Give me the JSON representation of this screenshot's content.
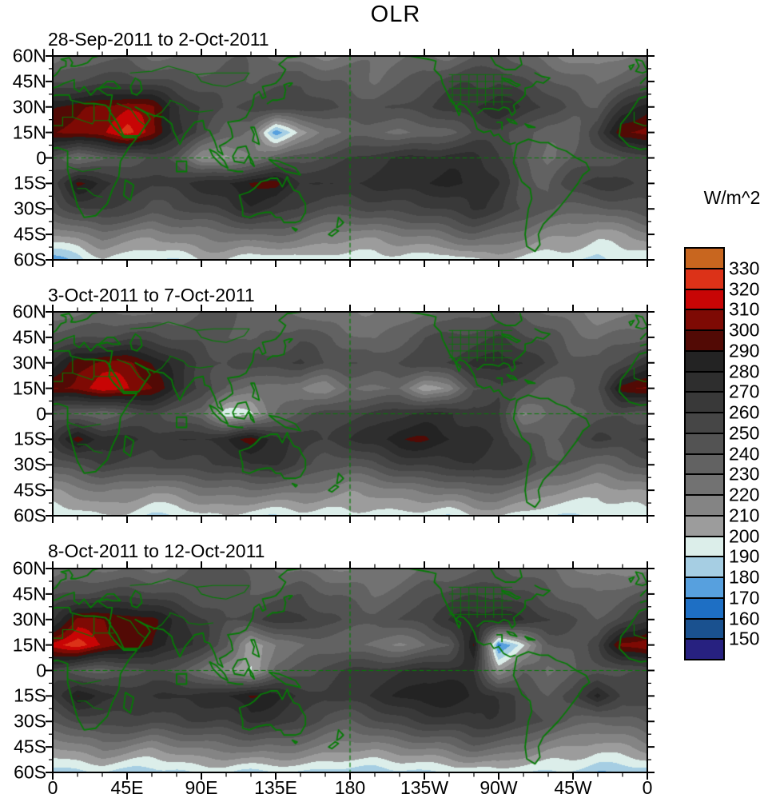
{
  "title": "OLR",
  "colorbar": {
    "unit_label": "W/m^2",
    "tick_labels": [
      "330",
      "320",
      "310",
      "300",
      "290",
      "280",
      "270",
      "260",
      "250",
      "240",
      "230",
      "220",
      "210",
      "200",
      "190",
      "180",
      "170",
      "160",
      "150"
    ],
    "colors_top_to_bottom": [
      "#C8661F",
      "#DC3218",
      "#C80505",
      "#7E0A04",
      "#520A05",
      "#232323",
      "#2E2E2E",
      "#393939",
      "#464646",
      "#535353",
      "#626262",
      "#727272",
      "#848484",
      "#9C9C9C",
      "#DCEEEA",
      "#A6CEE3",
      "#57A0DE",
      "#1E6FC4",
      "#1A518F",
      "#272180"
    ]
  },
  "axes": {
    "lat_tick_labels": [
      "60N",
      "45N",
      "30N",
      "15N",
      "0",
      "15S",
      "30S",
      "45S",
      "60S"
    ],
    "lon_tick_labels": [
      "0",
      "45E",
      "90E",
      "135E",
      "180",
      "135W",
      "90W",
      "45W",
      "0"
    ]
  },
  "map_style": {
    "overlay_green": "#067B06"
  },
  "chart_data": {
    "type": "heatmap",
    "title": "OLR",
    "unit": "W/m^2",
    "lat_range": [
      60,
      -60
    ],
    "lon_range": [
      0,
      360
    ],
    "levels": [
      150,
      160,
      170,
      180,
      190,
      200,
      210,
      220,
      230,
      240,
      250,
      260,
      270,
      280,
      290,
      300,
      310,
      320,
      330
    ],
    "grid_lats": [
      60,
      45,
      30,
      15,
      0,
      -15,
      -30,
      -45,
      -60
    ],
    "grid_lons": [
      0,
      15,
      30,
      45,
      60,
      75,
      90,
      105,
      120,
      135,
      150,
      165,
      180,
      195,
      210,
      225,
      240,
      255,
      270,
      285,
      300,
      315,
      330,
      345,
      360
    ],
    "region_box": {
      "lon_min": 75,
      "lon_max": 81,
      "lat_min": -8,
      "lat_max": -2
    },
    "panels": [
      {
        "title": "28-Sep-2011 to 2-Oct-2011",
        "values": [
          [
            222,
            228,
            232,
            234,
            230,
            233,
            238,
            240,
            236,
            230,
            224,
            216,
            220,
            224,
            228,
            233,
            230,
            238,
            244,
            238,
            228,
            218,
            210,
            215,
            222
          ],
          [
            243,
            248,
            254,
            258,
            254,
            249,
            244,
            239,
            236,
            244,
            249,
            240,
            234,
            230,
            239,
            249,
            254,
            259,
            264,
            254,
            244,
            234,
            229,
            235,
            243
          ],
          [
            288,
            296,
            302,
            306,
            298,
            274,
            259,
            250,
            254,
            259,
            264,
            254,
            249,
            245,
            249,
            254,
            264,
            274,
            279,
            269,
            259,
            249,
            244,
            268,
            288
          ],
          [
            300,
            302,
            306,
            318,
            304,
            274,
            259,
            241,
            225,
            175,
            205,
            229,
            234,
            229,
            224,
            229,
            239,
            249,
            254,
            244,
            234,
            239,
            260,
            300,
            300
          ],
          [
            249,
            228,
            234,
            244,
            254,
            244,
            212,
            208,
            224,
            234,
            244,
            254,
            259,
            264,
            269,
            274,
            274,
            269,
            259,
            239,
            229,
            239,
            244,
            249,
            249
          ],
          [
            259,
            293,
            274,
            269,
            264,
            269,
            274,
            279,
            293,
            296,
            269,
            264,
            269,
            274,
            279,
            284,
            284,
            279,
            269,
            249,
            239,
            254,
            264,
            259,
            259
          ],
          [
            244,
            254,
            259,
            254,
            249,
            254,
            259,
            264,
            274,
            269,
            259,
            249,
            244,
            249,
            254,
            259,
            264,
            269,
            264,
            254,
            244,
            239,
            234,
            239,
            244
          ],
          [
            214,
            219,
            224,
            219,
            214,
            219,
            224,
            229,
            234,
            229,
            224,
            219,
            214,
            214,
            219,
            224,
            229,
            234,
            229,
            224,
            214,
            209,
            204,
            209,
            214
          ],
          [
            178,
            183,
            199,
            199,
            194,
            193,
            199,
            199,
            194,
            193,
            194,
            189,
            194,
            194,
            199,
            199,
            194,
            199,
            204,
            199,
            193,
            189,
            184,
            189,
            193
          ]
        ]
      },
      {
        "title": "3-Oct-2011 to 7-Oct-2011",
        "values": [
          [
            222,
            228,
            232,
            234,
            230,
            233,
            238,
            240,
            236,
            230,
            224,
            216,
            220,
            224,
            228,
            233,
            230,
            238,
            244,
            238,
            228,
            218,
            210,
            215,
            222
          ],
          [
            243,
            248,
            254,
            258,
            254,
            249,
            244,
            239,
            236,
            244,
            249,
            240,
            234,
            230,
            239,
            249,
            254,
            259,
            264,
            254,
            244,
            234,
            229,
            235,
            243
          ],
          [
            268,
            298,
            303,
            298,
            289,
            274,
            259,
            250,
            254,
            259,
            264,
            254,
            249,
            245,
            249,
            254,
            264,
            274,
            279,
            269,
            259,
            249,
            244,
            254,
            268
          ],
          [
            300,
            308,
            316,
            310,
            295,
            274,
            259,
            241,
            231,
            221,
            224,
            214,
            234,
            229,
            224,
            200,
            210,
            249,
            254,
            244,
            234,
            239,
            254,
            298,
            300
          ],
          [
            249,
            239,
            234,
            244,
            254,
            244,
            229,
            192,
            200,
            234,
            244,
            254,
            259,
            264,
            269,
            274,
            274,
            269,
            259,
            218,
            229,
            239,
            244,
            249,
            249
          ],
          [
            259,
            296,
            274,
            269,
            264,
            269,
            274,
            279,
            294,
            279,
            269,
            264,
            269,
            274,
            286,
            289,
            284,
            279,
            269,
            249,
            239,
            254,
            264,
            259,
            259
          ],
          [
            244,
            254,
            259,
            254,
            249,
            254,
            259,
            264,
            274,
            269,
            259,
            249,
            244,
            249,
            254,
            259,
            264,
            269,
            264,
            254,
            244,
            239,
            234,
            239,
            244
          ],
          [
            214,
            219,
            224,
            219,
            214,
            219,
            224,
            229,
            234,
            229,
            224,
            219,
            214,
            214,
            219,
            224,
            229,
            234,
            229,
            224,
            214,
            209,
            204,
            209,
            214
          ],
          [
            193,
            194,
            199,
            199,
            194,
            193,
            199,
            199,
            194,
            193,
            194,
            189,
            194,
            194,
            199,
            199,
            194,
            199,
            204,
            199,
            193,
            189,
            184,
            189,
            193
          ]
        ]
      },
      {
        "title": "8-Oct-2011 to 12-Oct-2011",
        "values": [
          [
            222,
            228,
            232,
            234,
            230,
            233,
            238,
            240,
            236,
            230,
            224,
            216,
            220,
            224,
            228,
            233,
            230,
            238,
            244,
            238,
            228,
            218,
            210,
            215,
            222
          ],
          [
            243,
            248,
            254,
            258,
            254,
            249,
            244,
            239,
            236,
            244,
            249,
            240,
            234,
            230,
            239,
            249,
            254,
            259,
            264,
            254,
            244,
            234,
            229,
            235,
            243
          ],
          [
            268,
            304,
            300,
            299,
            289,
            274,
            259,
            250,
            254,
            259,
            264,
            254,
            249,
            245,
            249,
            254,
            264,
            274,
            279,
            269,
            259,
            249,
            244,
            254,
            268
          ],
          [
            316,
            324,
            314,
            300,
            292,
            274,
            259,
            241,
            198,
            221,
            224,
            229,
            234,
            229,
            224,
            229,
            239,
            293,
            168,
            200,
            234,
            239,
            254,
            305,
            316
          ],
          [
            249,
            239,
            234,
            244,
            254,
            244,
            229,
            205,
            195,
            234,
            244,
            254,
            259,
            264,
            269,
            274,
            274,
            269,
            215,
            239,
            229,
            239,
            244,
            249,
            249
          ],
          [
            259,
            292,
            274,
            269,
            264,
            269,
            274,
            279,
            292,
            279,
            269,
            264,
            269,
            274,
            279,
            284,
            284,
            279,
            269,
            249,
            239,
            254,
            290,
            259,
            259
          ],
          [
            244,
            254,
            259,
            254,
            249,
            254,
            259,
            264,
            274,
            269,
            259,
            249,
            244,
            249,
            254,
            259,
            264,
            269,
            264,
            254,
            244,
            239,
            234,
            239,
            244
          ],
          [
            214,
            219,
            224,
            219,
            214,
            219,
            224,
            229,
            234,
            229,
            224,
            219,
            214,
            214,
            219,
            224,
            229,
            234,
            229,
            224,
            214,
            209,
            204,
            209,
            214
          ],
          [
            186,
            188,
            192,
            190,
            186,
            185,
            190,
            190,
            186,
            185,
            186,
            183,
            186,
            186,
            190,
            190,
            186,
            190,
            196,
            190,
            186,
            183,
            180,
            183,
            186
          ]
        ]
      }
    ]
  }
}
